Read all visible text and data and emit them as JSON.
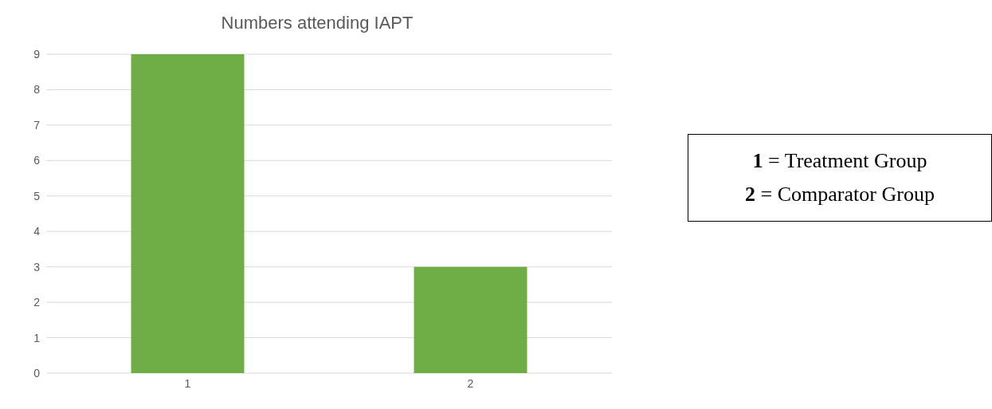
{
  "chart_data": {
    "type": "bar",
    "title": "Numbers attending IAPT",
    "categories": [
      "1",
      "2"
    ],
    "values": [
      9,
      3
    ],
    "color": "#70ad47",
    "ylim": [
      0,
      9
    ],
    "yticks": [
      0,
      1,
      2,
      3,
      4,
      5,
      6,
      7,
      8,
      9
    ],
    "grid": "y",
    "annotations": [
      "1 = Treatment Group",
      "2 = Comparator Group"
    ]
  }
}
